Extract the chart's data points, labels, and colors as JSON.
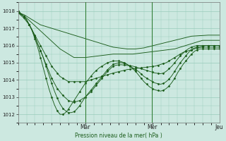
{
  "background_color": "#cce8e0",
  "grid_color": "#99ccbb",
  "line_color": "#1a5c1a",
  "ylabel": "Pression niveau de la mer( hPa )",
  "ylim": [
    1011.5,
    1018.5
  ],
  "yticks": [
    1012,
    1013,
    1014,
    1015,
    1016,
    1017,
    1018
  ],
  "day_labels": [
    "Mar",
    "Mer",
    "Jeu"
  ],
  "day_positions": [
    0.333,
    0.666,
    1.0
  ],
  "n_points": 73,
  "series": [
    [
      1017.9,
      1017.85,
      1017.8,
      1017.7,
      1017.6,
      1017.5,
      1017.4,
      1017.3,
      1017.2,
      1017.15,
      1017.1,
      1017.05,
      1017.0,
      1016.95,
      1016.9,
      1016.85,
      1016.8,
      1016.75,
      1016.7,
      1016.65,
      1016.6,
      1016.55,
      1016.5,
      1016.45,
      1016.4,
      1016.35,
      1016.3,
      1016.25,
      1016.2,
      1016.15,
      1016.1,
      1016.05,
      1016.0,
      1015.95,
      1015.9,
      1015.88,
      1015.86,
      1015.84,
      1015.82,
      1015.8,
      1015.8,
      1015.8,
      1015.8,
      1015.82,
      1015.84,
      1015.86,
      1015.9,
      1015.94,
      1015.98,
      1016.02,
      1016.06,
      1016.1,
      1016.14,
      1016.18,
      1016.22,
      1016.26,
      1016.3,
      1016.34,
      1016.38,
      1016.42,
      1016.46,
      1016.5,
      1016.54,
      1016.55,
      1016.56,
      1016.57,
      1016.58,
      1016.59,
      1016.6,
      1016.6,
      1016.6,
      1016.6,
      1016.6
    ],
    [
      1017.9,
      1017.8,
      1017.7,
      1017.6,
      1017.45,
      1017.3,
      1017.15,
      1017.0,
      1016.85,
      1016.7,
      1016.55,
      1016.4,
      1016.25,
      1016.1,
      1015.95,
      1015.8,
      1015.7,
      1015.6,
      1015.5,
      1015.4,
      1015.3,
      1015.3,
      1015.3,
      1015.3,
      1015.3,
      1015.32,
      1015.34,
      1015.36,
      1015.38,
      1015.4,
      1015.42,
      1015.44,
      1015.46,
      1015.48,
      1015.5,
      1015.5,
      1015.5,
      1015.5,
      1015.5,
      1015.5,
      1015.5,
      1015.5,
      1015.52,
      1015.54,
      1015.56,
      1015.58,
      1015.6,
      1015.62,
      1015.64,
      1015.66,
      1015.68,
      1015.7,
      1015.72,
      1015.74,
      1015.76,
      1015.78,
      1015.8,
      1015.85,
      1015.9,
      1015.95,
      1016.0,
      1016.05,
      1016.1,
      1016.15,
      1016.2,
      1016.25,
      1016.3,
      1016.3,
      1016.3,
      1016.3,
      1016.3,
      1016.3,
      1016.3
    ],
    [
      1017.9,
      1017.75,
      1017.6,
      1017.4,
      1017.2,
      1016.9,
      1016.6,
      1016.3,
      1016.0,
      1015.7,
      1015.4,
      1015.1,
      1014.8,
      1014.6,
      1014.4,
      1014.2,
      1014.1,
      1014.0,
      1013.9,
      1013.9,
      1013.9,
      1013.9,
      1013.9,
      1013.9,
      1013.9,
      1013.95,
      1014.0,
      1014.05,
      1014.1,
      1014.15,
      1014.2,
      1014.25,
      1014.3,
      1014.35,
      1014.4,
      1014.44,
      1014.48,
      1014.52,
      1014.56,
      1014.6,
      1014.62,
      1014.64,
      1014.66,
      1014.68,
      1014.7,
      1014.72,
      1014.74,
      1014.76,
      1014.78,
      1014.8,
      1014.85,
      1014.9,
      1014.95,
      1015.0,
      1015.1,
      1015.2,
      1015.3,
      1015.4,
      1015.5,
      1015.6,
      1015.65,
      1015.7,
      1015.75,
      1015.8,
      1015.85,
      1015.9,
      1015.95,
      1016.0,
      1016.0,
      1016.0,
      1016.0,
      1016.0,
      1016.0
    ],
    [
      1018.0,
      1017.85,
      1017.7,
      1017.5,
      1017.2,
      1016.9,
      1016.5,
      1016.1,
      1015.7,
      1015.3,
      1014.9,
      1014.5,
      1014.1,
      1013.8,
      1013.5,
      1013.3,
      1013.1,
      1012.95,
      1012.8,
      1012.75,
      1012.7,
      1012.75,
      1012.8,
      1012.9,
      1013.0,
      1013.15,
      1013.3,
      1013.5,
      1013.7,
      1013.9,
      1014.1,
      1014.3,
      1014.5,
      1014.65,
      1014.8,
      1014.85,
      1014.88,
      1014.88,
      1014.86,
      1014.84,
      1014.82,
      1014.8,
      1014.75,
      1014.7,
      1014.65,
      1014.6,
      1014.55,
      1014.5,
      1014.45,
      1014.4,
      1014.38,
      1014.36,
      1014.4,
      1014.5,
      1014.65,
      1014.8,
      1015.0,
      1015.2,
      1015.4,
      1015.55,
      1015.7,
      1015.82,
      1015.9,
      1015.95,
      1016.0,
      1016.0,
      1016.0,
      1016.0,
      1016.0,
      1016.0,
      1016.0,
      1016.0,
      1016.0
    ],
    [
      1018.0,
      1017.85,
      1017.7,
      1017.5,
      1017.2,
      1016.9,
      1016.5,
      1016.1,
      1015.7,
      1015.3,
      1014.8,
      1014.3,
      1013.8,
      1013.35,
      1012.95,
      1012.6,
      1012.35,
      1012.2,
      1012.1,
      1012.1,
      1012.15,
      1012.3,
      1012.5,
      1012.75,
      1013.0,
      1013.2,
      1013.4,
      1013.6,
      1013.8,
      1014.0,
      1014.2,
      1014.4,
      1014.6,
      1014.75,
      1014.9,
      1014.95,
      1015.0,
      1015.0,
      1014.95,
      1014.9,
      1014.8,
      1014.7,
      1014.6,
      1014.5,
      1014.35,
      1014.2,
      1014.1,
      1014.0,
      1013.9,
      1013.82,
      1013.78,
      1013.75,
      1013.8,
      1013.9,
      1014.05,
      1014.25,
      1014.5,
      1014.75,
      1015.0,
      1015.2,
      1015.4,
      1015.6,
      1015.75,
      1015.85,
      1015.9,
      1015.9,
      1015.9,
      1015.9,
      1015.9,
      1015.9,
      1015.9,
      1015.9,
      1015.9
    ],
    [
      1018.0,
      1017.85,
      1017.7,
      1017.5,
      1017.2,
      1016.85,
      1016.4,
      1015.9,
      1015.3,
      1014.7,
      1014.1,
      1013.5,
      1013.0,
      1012.55,
      1012.2,
      1012.0,
      1012.0,
      1012.1,
      1012.3,
      1012.55,
      1012.8,
      1013.05,
      1013.3,
      1013.55,
      1013.8,
      1014.0,
      1014.2,
      1014.4,
      1014.55,
      1014.7,
      1014.8,
      1014.9,
      1015.0,
      1015.05,
      1015.1,
      1015.1,
      1015.1,
      1015.05,
      1015.0,
      1014.9,
      1014.8,
      1014.65,
      1014.5,
      1014.3,
      1014.1,
      1013.9,
      1013.75,
      1013.6,
      1013.5,
      1013.42,
      1013.38,
      1013.35,
      1013.4,
      1013.5,
      1013.65,
      1013.85,
      1014.1,
      1014.4,
      1014.65,
      1014.9,
      1015.1,
      1015.3,
      1015.5,
      1015.65,
      1015.75,
      1015.8,
      1015.8,
      1015.8,
      1015.8,
      1015.8,
      1015.8,
      1015.8,
      1015.8
    ]
  ]
}
